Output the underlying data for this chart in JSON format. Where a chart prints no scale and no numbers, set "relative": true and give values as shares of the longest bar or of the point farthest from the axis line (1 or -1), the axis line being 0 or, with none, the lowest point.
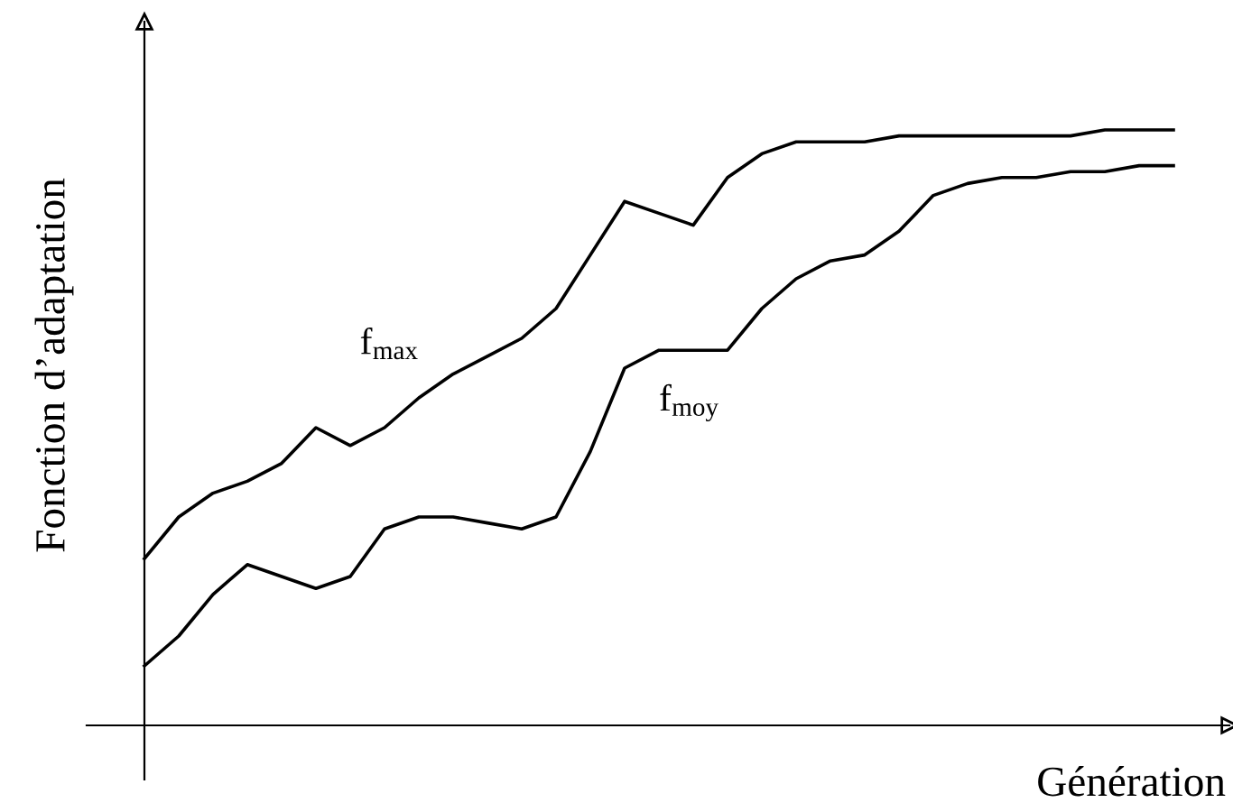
{
  "chart_data": {
    "type": "line",
    "relative": true,
    "xlabel": "Génération",
    "ylabel": "Fonction d’adaptation",
    "categories": [
      null,
      null,
      null,
      null,
      null,
      null,
      null,
      null,
      null,
      null,
      null,
      null,
      null,
      null,
      null,
      null,
      null,
      null,
      null,
      null,
      null,
      null,
      null,
      null,
      null,
      null,
      null,
      null,
      null,
      null,
      null
    ],
    "series": [
      {
        "name": "f$_{max}$",
        "color": "#000000",
        "values": [
          0.28,
          0.35,
          0.39,
          0.41,
          0.44,
          0.5,
          0.47,
          0.5,
          0.55,
          0.59,
          0.62,
          0.65,
          0.7,
          0.79,
          0.88,
          0.86,
          0.84,
          0.92,
          0.96,
          0.98,
          0.98,
          0.98,
          0.99,
          0.99,
          0.99,
          0.99,
          0.99,
          0.99,
          1.0,
          1.0,
          1.0
        ]
      },
      {
        "name": "f$_{moy}$",
        "color": "#000000",
        "values": [
          0.1,
          0.15,
          0.22,
          0.27,
          0.25,
          0.23,
          0.25,
          0.33,
          0.35,
          0.35,
          0.34,
          0.33,
          0.35,
          0.46,
          0.6,
          0.63,
          0.63,
          0.63,
          0.7,
          0.75,
          0.78,
          0.79,
          0.83,
          0.89,
          0.91,
          0.92,
          0.92,
          0.93,
          0.93,
          0.94,
          0.94
        ]
      }
    ],
    "legend": false,
    "marker": "none",
    "line_style": "solid"
  }
}
